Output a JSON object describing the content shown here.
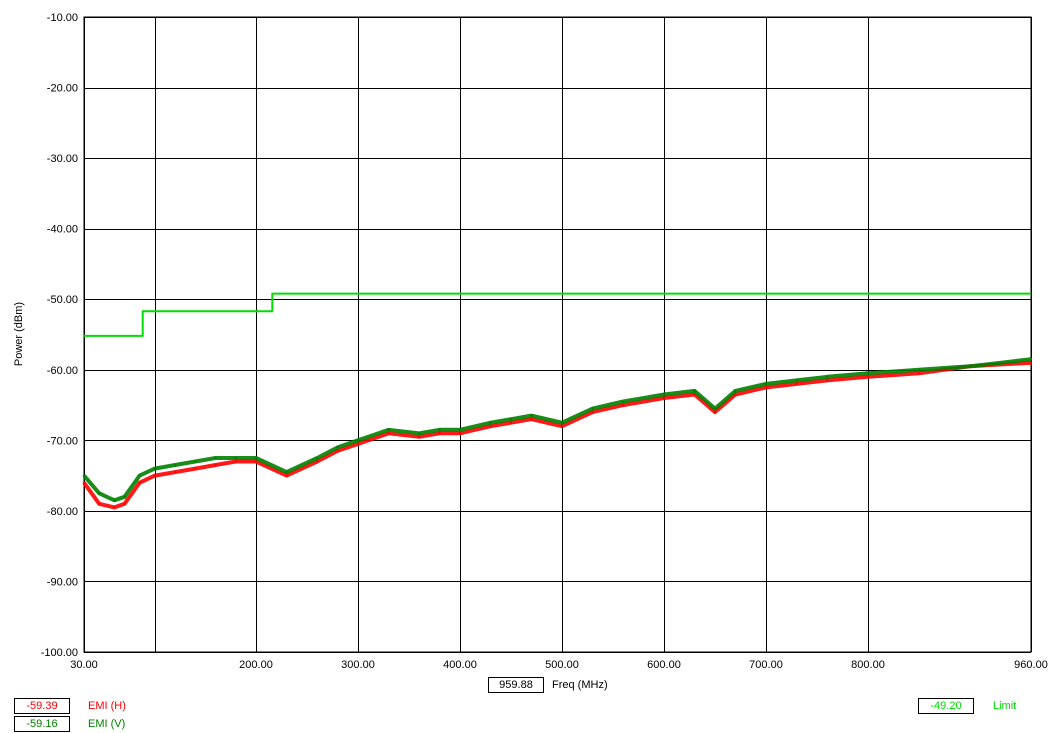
{
  "chart_data": {
    "type": "line",
    "title": "",
    "xlabel": "Freq (MHz)",
    "ylabel": "Power (dBm)",
    "xlim": [
      30,
      960
    ],
    "ylim": [
      -100,
      -10
    ],
    "x_scale": "log-like",
    "grid": true,
    "x_ticks": [
      "30.00",
      "200.00",
      "300.00",
      "400.00",
      "500.00",
      "600.00",
      "700.00",
      "800.00",
      "960.00"
    ],
    "x_tick_values": [
      30,
      200,
      300,
      400,
      500,
      600,
      700,
      800,
      960
    ],
    "y_ticks": [
      "-10.00",
      "-20.00",
      "-30.00",
      "-40.00",
      "-50.00",
      "-60.00",
      "-70.00",
      "-80.00",
      "-90.00",
      "-100.00"
    ],
    "y_tick_values": [
      -10,
      -20,
      -30,
      -40,
      -50,
      -60,
      -70,
      -80,
      -90,
      -100
    ],
    "series": [
      {
        "name": "EMI (H)",
        "color": "#ff0000",
        "x": [
          30,
          45,
          60,
          70,
          85,
          100,
          120,
          140,
          160,
          180,
          200,
          230,
          260,
          280,
          300,
          330,
          360,
          380,
          400,
          430,
          450,
          470,
          500,
          530,
          560,
          600,
          630,
          650,
          670,
          700,
          730,
          760,
          800,
          850,
          900,
          960
        ],
        "y": [
          -76,
          -79,
          -79.5,
          -79,
          -76,
          -75,
          -74.5,
          -74,
          -73.5,
          -73,
          -73,
          -75,
          -73,
          -71.5,
          -70.5,
          -69,
          -69.5,
          -69,
          -69,
          -68,
          -67.5,
          -67,
          -68,
          -66,
          -65,
          -64,
          -63.5,
          -66,
          -63.5,
          -62.5,
          -62,
          -61.5,
          -61,
          -60.5,
          -59.5,
          -59
        ]
      },
      {
        "name": "EMI (V)",
        "color": "#008000",
        "x": [
          30,
          45,
          60,
          70,
          85,
          100,
          120,
          140,
          160,
          180,
          200,
          230,
          260,
          280,
          300,
          330,
          360,
          380,
          400,
          430,
          450,
          470,
          500,
          530,
          560,
          600,
          630,
          650,
          670,
          700,
          730,
          760,
          800,
          850,
          900,
          960
        ],
        "y": [
          -75,
          -77.5,
          -78.5,
          -78,
          -75,
          -74,
          -73.5,
          -73,
          -72.5,
          -72.5,
          -72.5,
          -74.5,
          -72.5,
          -71,
          -70,
          -68.5,
          -69,
          -68.5,
          -68.5,
          -67.5,
          -67,
          -66.5,
          -67.5,
          -65.5,
          -64.5,
          -63.5,
          -63,
          -65.5,
          -63,
          -62,
          -61.5,
          -61,
          -60.5,
          -60,
          -59.5,
          -58.5
        ]
      },
      {
        "name": "Limit",
        "color": "#00dd00",
        "x": [
          30,
          88,
          88,
          216,
          216,
          960
        ],
        "y": [
          -55.2,
          -55.2,
          -51.7,
          -51.7,
          -49.2,
          -49.2
        ]
      }
    ]
  },
  "ui": {
    "freq_readout": "959.88",
    "freq_label": "Freq (MHz)",
    "ylabel": "Power (dBm)",
    "legend": {
      "h_value": "-59.39",
      "h_label": "EMI (H)",
      "v_value": "-59.16",
      "v_label": "EMI (V)",
      "limit_value": "-49.20",
      "limit_label": "Limit"
    },
    "colors": {
      "h": "#ff0000",
      "v": "#008000",
      "limit": "#00dd00"
    }
  }
}
